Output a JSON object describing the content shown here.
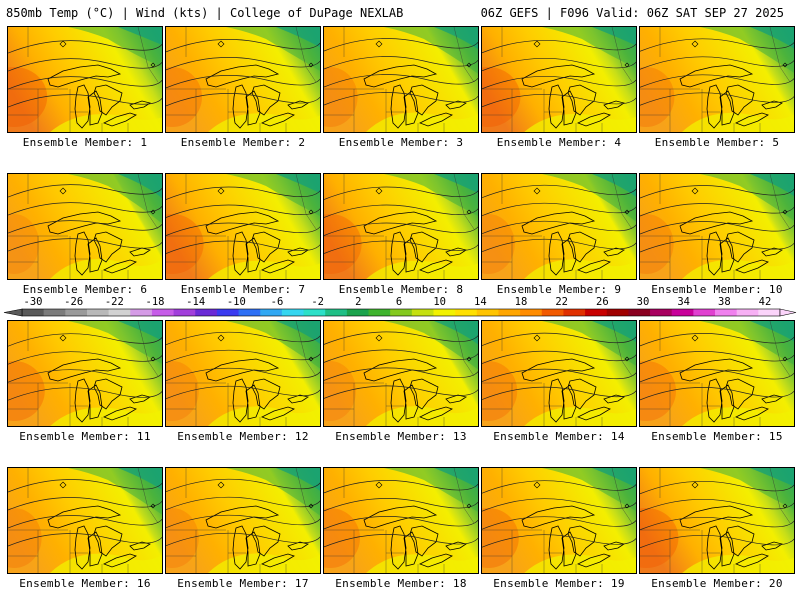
{
  "header": {
    "left": "850mb Temp (°C) | Wind (kts) | College of DuPage NEXLAB",
    "right": "06Z GEFS | F096 Valid: 06Z SAT SEP 27 2025"
  },
  "panels": [
    {
      "label": "Ensemble Member: 1",
      "warm": 0.95
    },
    {
      "label": "Ensemble Member: 2",
      "warm": 0.75
    },
    {
      "label": "Ensemble Member: 3",
      "warm": 0.6
    },
    {
      "label": "Ensemble Member: 4",
      "warm": 0.9
    },
    {
      "label": "Ensemble Member: 5",
      "warm": 0.65
    },
    {
      "label": "Ensemble Member: 6",
      "warm": 0.45
    },
    {
      "label": "Ensemble Member: 7",
      "warm": 0.85
    },
    {
      "label": "Ensemble Member: 8",
      "warm": 0.85
    },
    {
      "label": "Ensemble Member: 9",
      "warm": 0.55
    },
    {
      "label": "Ensemble Member: 10",
      "warm": 0.6
    },
    {
      "label": "Ensemble Member: 11",
      "warm": 0.8
    },
    {
      "label": "Ensemble Member: 12",
      "warm": 0.55
    },
    {
      "label": "Ensemble Member: 13",
      "warm": 0.5
    },
    {
      "label": "Ensemble Member: 14",
      "warm": 0.7
    },
    {
      "label": "Ensemble Member: 15",
      "warm": 0.75
    },
    {
      "label": "Ensemble Member: 16",
      "warm": 0.6
    },
    {
      "label": "Ensemble Member: 17",
      "warm": 0.55
    },
    {
      "label": "Ensemble Member: 18",
      "warm": 0.75
    },
    {
      "label": "Ensemble Member: 19",
      "warm": 0.8
    },
    {
      "label": "Ensemble Member: 20",
      "warm": 0.9
    }
  ],
  "colorbar": {
    "ticks": [
      "-30",
      "-26",
      "-22",
      "-18",
      "-14",
      "-10",
      "-6",
      "-2",
      "2",
      "6",
      "10",
      "14",
      "18",
      "22",
      "26",
      "30",
      "34",
      "38",
      "42"
    ],
    "colors": [
      "#5a5a5a",
      "#7c7c7c",
      "#9a9a9a",
      "#b8b8b8",
      "#d2d2d2",
      "#d59be6",
      "#c65ce8",
      "#a13fdb",
      "#6a2ad6",
      "#3a3af0",
      "#2e6ff5",
      "#31a8f3",
      "#35d6f0",
      "#2ce0c8",
      "#1fbf86",
      "#1ba34d",
      "#3fb32e",
      "#84c91e",
      "#c5e010",
      "#f2f200",
      "#ffe000",
      "#ffc400",
      "#ffa600",
      "#ff8c00",
      "#f25a00",
      "#e03000",
      "#c80000",
      "#a00000",
      "#8a0020",
      "#a80060",
      "#c8009a",
      "#e040d0",
      "#f080ee",
      "#f7b0f4",
      "#fbd4fa"
    ]
  }
}
